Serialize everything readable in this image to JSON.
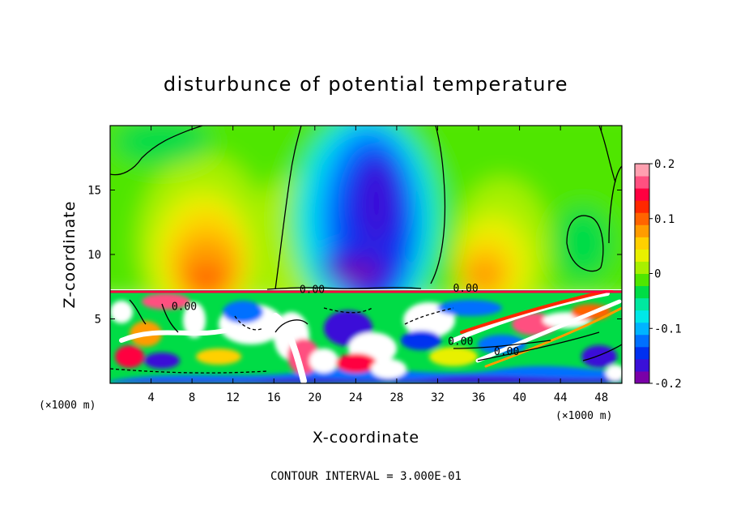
{
  "chart_data": {
    "type": "heatmap",
    "title": "disturbunce of potential temperature",
    "xlabel": "X-coordinate",
    "ylabel": "Z-coordinate",
    "x_unit": "(×1000 m)",
    "x_unit_right": "(×1000 m)",
    "xlim": [
      0,
      50
    ],
    "ylim": [
      0,
      20
    ],
    "x_ticks": [
      4,
      8,
      12,
      16,
      20,
      24,
      28,
      32,
      36,
      40,
      44,
      48
    ],
    "y_ticks": [
      5,
      10,
      15
    ],
    "colorbar": {
      "range": [
        -0.2,
        0.2
      ],
      "ticks": [
        "0.2",
        "0.1",
        "0",
        "-0.1",
        "-0.2"
      ],
      "tick_values": [
        0.2,
        0.1,
        0,
        -0.1,
        -0.2
      ],
      "colors": [
        "#7a00a8",
        "#3a10d8",
        "#0030f0",
        "#0070ff",
        "#00b4ff",
        "#00e8e8",
        "#00e8a0",
        "#00dc46",
        "#50e600",
        "#a8f000",
        "#e8f000",
        "#ffd000",
        "#ff9c00",
        "#ff6400",
        "#ff2800",
        "#ff0040",
        "#ff5080",
        "#ffa0b0"
      ]
    },
    "contour_labels": [
      {
        "text": "0.00",
        "x": 18.5,
        "z": 7.0
      },
      {
        "text": "0.00",
        "x": 33.5,
        "z": 7.1
      },
      {
        "text": "0.00",
        "x": 6.0,
        "z": 5.7
      },
      {
        "text": "0.00",
        "x": 33.0,
        "z": 3.0
      },
      {
        "text": "0.00",
        "x": 37.5,
        "z": 2.2
      }
    ],
    "footer_text": "CONTOUR INTERVAL = 3.000E-01"
  }
}
